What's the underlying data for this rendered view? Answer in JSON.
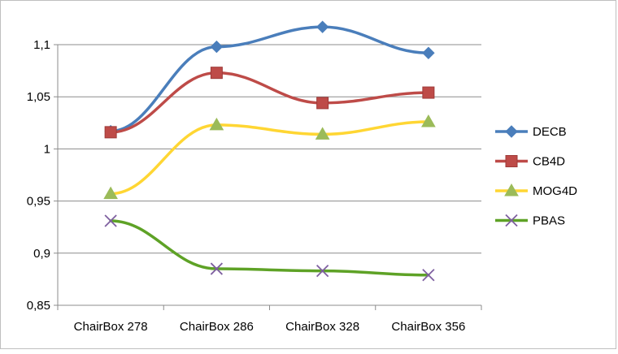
{
  "chart_data": {
    "type": "line",
    "categories": [
      "ChairBox 278",
      "ChairBox 286",
      "ChairBox 328",
      "ChairBox 356"
    ],
    "y_ticks": [
      "0,85",
      "0,9",
      "0,95",
      "1",
      "1,05",
      "1,1"
    ],
    "ylim": [
      0.85,
      1.1
    ],
    "grid": true,
    "legend_position": "right",
    "series": [
      {
        "name": "DECB",
        "values": [
          1.017,
          1.098,
          1.117,
          1.092
        ],
        "color": "#4a7ebb",
        "marker": "diamond"
      },
      {
        "name": "CB4D",
        "values": [
          1.016,
          1.073,
          1.044,
          1.054
        ],
        "color": "#be4b48",
        "marker": "square"
      },
      {
        "name": "MOG4D",
        "values": [
          0.957,
          1.023,
          1.014,
          1.026
        ],
        "color": "#ffd633",
        "marker": "triangle",
        "marker_color": "#9bbb59"
      },
      {
        "name": "PBAS",
        "values": [
          0.931,
          0.885,
          0.883,
          0.879
        ],
        "color": "#5ea226",
        "marker": "x",
        "marker_color": "#7e5fa0"
      }
    ]
  }
}
